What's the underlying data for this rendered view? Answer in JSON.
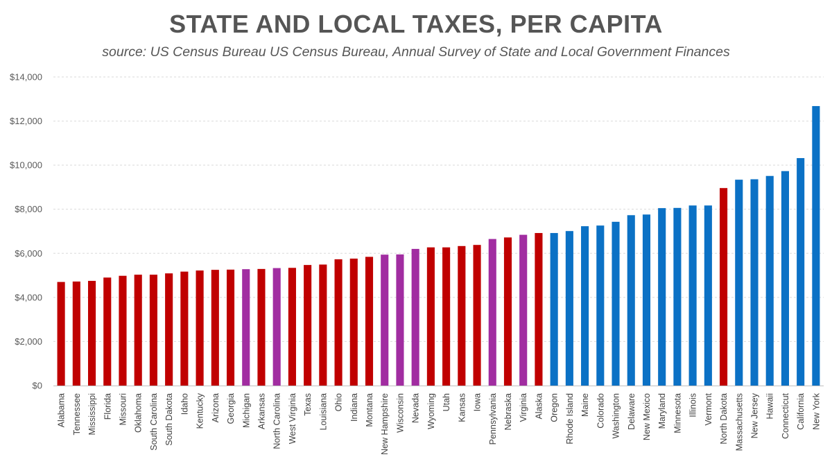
{
  "chart_data": {
    "type": "bar",
    "title": "STATE AND LOCAL TAXES, PER CAPITA",
    "subtitle": "source: US Census Bureau US Census Bureau, Annual Survey of State and Local Government Finances",
    "xlabel": "",
    "ylabel": "",
    "ylim": [
      0,
      14000
    ],
    "yticks": [
      0,
      2000,
      4000,
      6000,
      8000,
      10000,
      12000,
      14000
    ],
    "ytick_labels": [
      "$0",
      "$2,000",
      "$4,000",
      "$6,000",
      "$8,000",
      "$10,000",
      "$12,000",
      "$14,000"
    ],
    "grid": true,
    "colors": {
      "R": "#C00000",
      "S": "#A12DA1",
      "D": "#0B71C5"
    },
    "categories": [
      "Alabama",
      "Tennessee",
      "Mississippi",
      "Florida",
      "Missouri",
      "Oklahoma",
      "South Carolina",
      "South Dakota",
      "Idaho",
      "Kentucky",
      "Arizona",
      "Georgia",
      "Michigan",
      "Arkansas",
      "North Carolina",
      "West Virginia",
      "Texas",
      "Louisiana",
      "Ohio",
      "Indiana",
      "Montana",
      "New Hampshire",
      "Wisconsin",
      "Nevada",
      "Wyoming",
      "Utah",
      "Kansas",
      "Iowa",
      "Pennsylvania",
      "Nebraska",
      "Virginia",
      "Alaska",
      "Oregon",
      "Rhode Island",
      "Maine",
      "Colorado",
      "Washington",
      "Delaware",
      "New Mexico",
      "Maryland",
      "Minnesota",
      "Illinois",
      "Vermont",
      "North Dakota",
      "Massachusetts",
      "New Jersey",
      "Hawaii",
      "Connecticut",
      "California",
      "New York"
    ],
    "values": [
      4700,
      4720,
      4750,
      4900,
      4980,
      5030,
      5030,
      5090,
      5170,
      5220,
      5250,
      5260,
      5280,
      5290,
      5330,
      5340,
      5470,
      5490,
      5730,
      5760,
      5840,
      5940,
      5950,
      6200,
      6270,
      6270,
      6330,
      6380,
      6650,
      6720,
      6840,
      6920,
      6920,
      7010,
      7230,
      7260,
      7430,
      7730,
      7760,
      8050,
      8060,
      8170,
      8170,
      8960,
      9340,
      9360,
      9510,
      9730,
      10320,
      12680
    ],
    "groups": [
      "R",
      "R",
      "R",
      "R",
      "R",
      "R",
      "R",
      "R",
      "R",
      "R",
      "R",
      "R",
      "S",
      "R",
      "S",
      "R",
      "R",
      "R",
      "R",
      "R",
      "R",
      "S",
      "S",
      "S",
      "R",
      "R",
      "R",
      "R",
      "S",
      "R",
      "S",
      "R",
      "D",
      "D",
      "D",
      "D",
      "D",
      "D",
      "D",
      "D",
      "D",
      "D",
      "D",
      "R",
      "D",
      "D",
      "D",
      "D",
      "D",
      "D"
    ]
  }
}
